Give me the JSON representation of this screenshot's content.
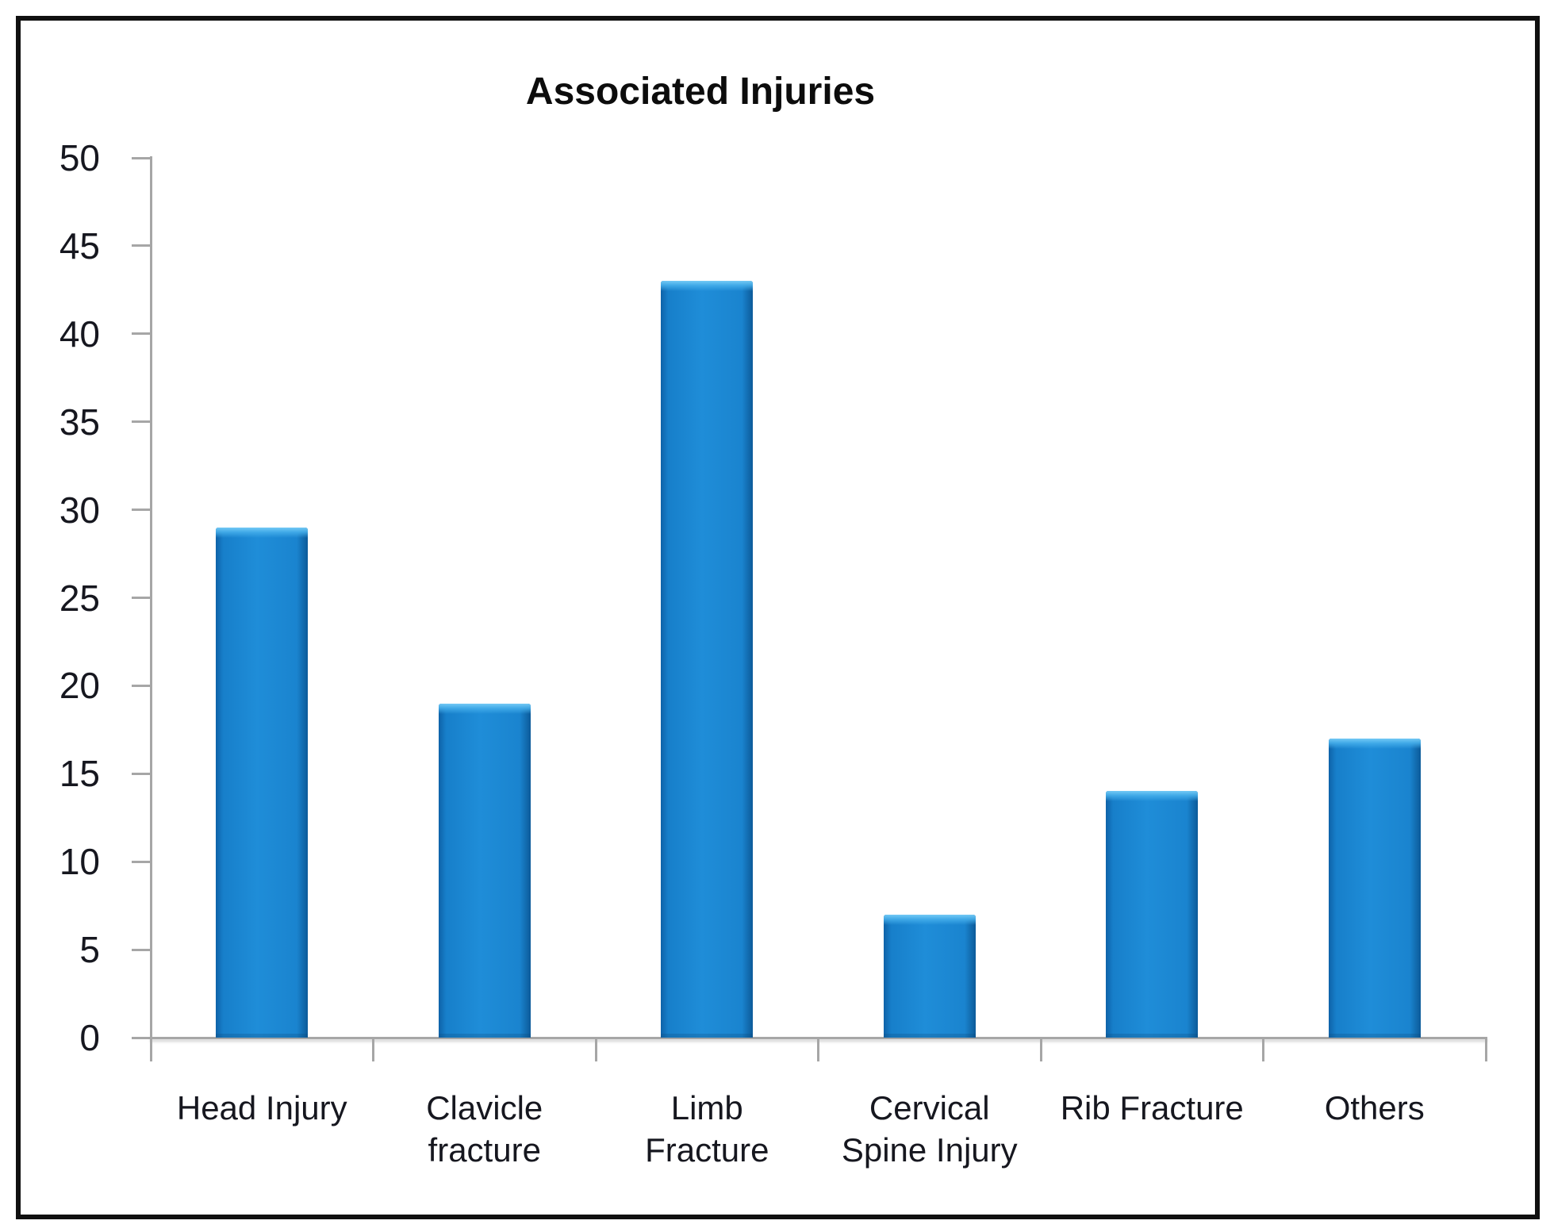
{
  "chart_data": {
    "type": "bar",
    "title": "Associated Injuries",
    "categories": [
      "Head Injury",
      "Clavicle fracture",
      "Limb Fracture",
      "Cervical Spine Injury",
      "Rib Fracture",
      "Others"
    ],
    "category_label_lines": [
      [
        "Head Injury"
      ],
      [
        "Clavicle",
        "fracture"
      ],
      [
        "Limb",
        "Fracture"
      ],
      [
        "Cervical",
        "Spine Injury"
      ],
      [
        "Rib Fracture"
      ],
      [
        "Others"
      ]
    ],
    "values": [
      29,
      19,
      43,
      7,
      14,
      17
    ],
    "xlabel": "",
    "ylabel": "",
    "ylim": [
      0,
      50
    ],
    "ytick_step": 5,
    "ytick_labels": [
      "0",
      "5",
      "10",
      "15",
      "20",
      "25",
      "30",
      "35",
      "40",
      "45",
      "50"
    ],
    "grid": false,
    "legend": false,
    "bar_color": "#1f8dd8",
    "bar_highlight_color": "#6cc8f5",
    "bar_edge_color": "#0d5fa3",
    "axis_color": "#a6a6a6",
    "text_color": "#16171f",
    "title_color": "#0c0c0c",
    "frame_border_color": "#101010"
  }
}
